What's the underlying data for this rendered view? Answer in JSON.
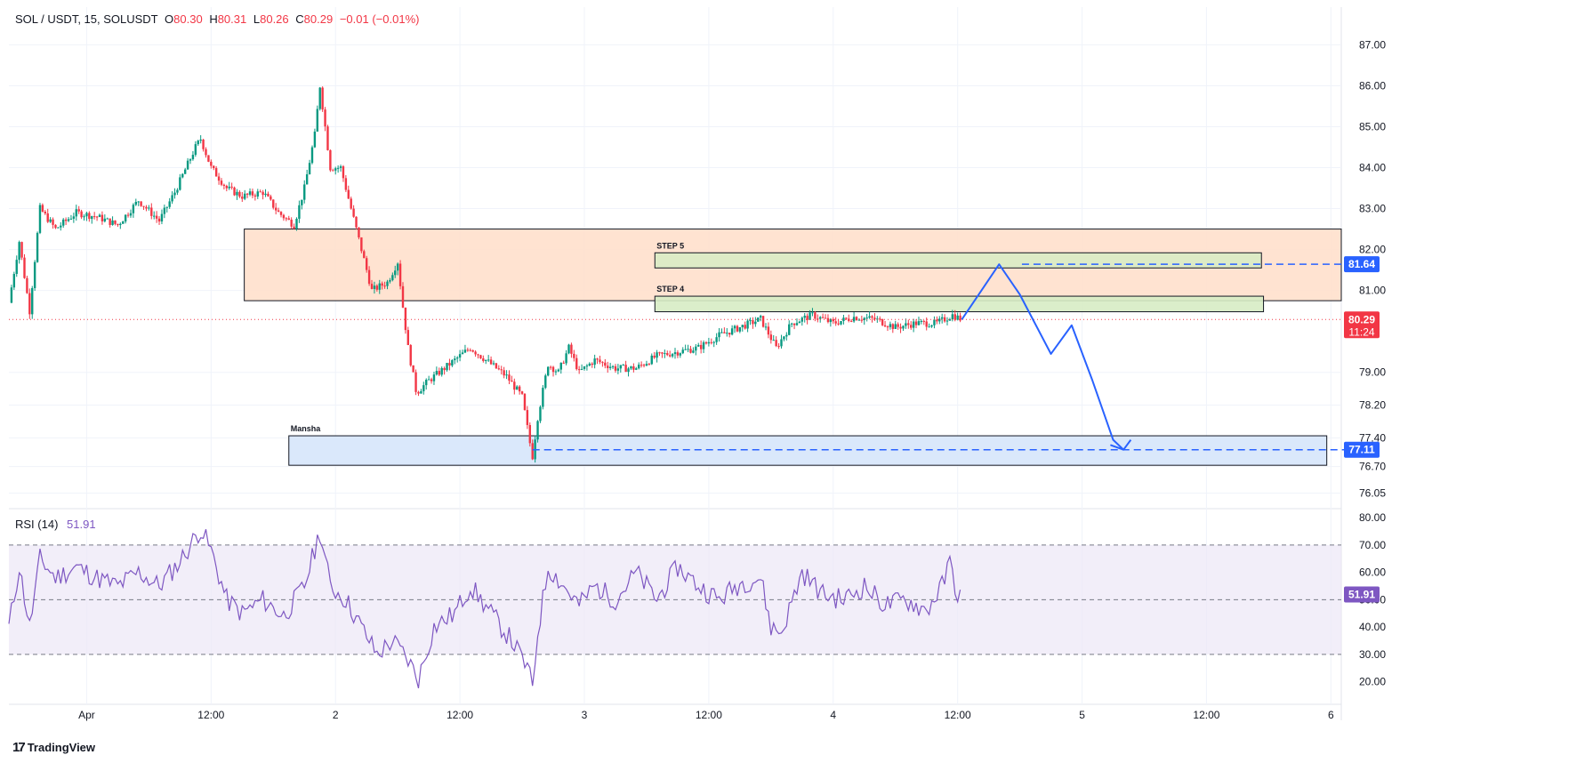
{
  "header": {
    "symbol": "SOL / USDT, 15, SOLUSDT",
    "o_label": "O",
    "o": "80.30",
    "h_label": "H",
    "h": "80.31",
    "l_label": "L",
    "l": "80.26",
    "c_label": "C",
    "c": "80.29",
    "change": "−0.01 (−0.01%)"
  },
  "rsi_header": {
    "label": "RSI (14)",
    "value": "51.91"
  },
  "branding": {
    "logo_icon": "tradingview-icon",
    "name": "TradingView"
  },
  "colors": {
    "up": "#089981",
    "down": "#f23645",
    "rsi_line": "#7e57c2",
    "projection": "#2962ff",
    "supply_zone": "#ffe0cc",
    "step_zone": "#d7ecc4",
    "demand_zone": "#d6e6fb",
    "rsi_band": "#ede7f6"
  },
  "chart_data": [
    {
      "type": "candlestick",
      "title": "SOL / USDT, 15, SOLUSDT",
      "y_axis_side": "right",
      "ylim": [
        75.8,
        87.4
      ],
      "y_ticks": [
        "87.00",
        "86.00",
        "85.00",
        "84.00",
        "83.00",
        "82.00",
        "81.00",
        "79.00",
        "78.20",
        "77.40",
        "76.70",
        "76.05"
      ],
      "x_ticks": [
        "Apr",
        "12:00",
        "2",
        "12:00",
        "3",
        "12:00",
        "4",
        "12:00",
        "5",
        "12:00",
        "6"
      ],
      "x_tick_hours": [
        0,
        12,
        24,
        36,
        48,
        60,
        72,
        84,
        96,
        108,
        120
      ],
      "x_range_hours": [
        -7.5,
        121
      ],
      "last_price": 80.29,
      "last_price_label": "80.29",
      "countdown_label": "11:24",
      "price_path": [
        {
          "t": -7.5,
          "p": 80.7
        },
        {
          "t": -6.5,
          "p": 82.2
        },
        {
          "t": -5.5,
          "p": 80.5
        },
        {
          "t": -4.5,
          "p": 83.0
        },
        {
          "t": -3.0,
          "p": 82.5
        },
        {
          "t": -1.0,
          "p": 82.9
        },
        {
          "t": 1.0,
          "p": 82.8
        },
        {
          "t": 3.0,
          "p": 82.6
        },
        {
          "t": 5.0,
          "p": 83.2
        },
        {
          "t": 7.0,
          "p": 82.7
        },
        {
          "t": 8.5,
          "p": 83.4
        },
        {
          "t": 10.5,
          "p": 84.5
        },
        {
          "t": 11.0,
          "p": 84.7
        },
        {
          "t": 12.0,
          "p": 84.0
        },
        {
          "t": 13.5,
          "p": 83.5
        },
        {
          "t": 15.0,
          "p": 83.3
        },
        {
          "t": 17.0,
          "p": 83.4
        },
        {
          "t": 18.5,
          "p": 82.9
        },
        {
          "t": 20.0,
          "p": 82.6
        },
        {
          "t": 21.0,
          "p": 83.5
        },
        {
          "t": 22.0,
          "p": 84.8
        },
        {
          "t": 22.5,
          "p": 86.0
        },
        {
          "t": 23.0,
          "p": 85.0
        },
        {
          "t": 23.5,
          "p": 84.0
        },
        {
          "t": 24.5,
          "p": 84.0
        },
        {
          "t": 25.5,
          "p": 83.0
        },
        {
          "t": 26.5,
          "p": 82.0
        },
        {
          "t": 27.5,
          "p": 81.0
        },
        {
          "t": 29.0,
          "p": 81.2
        },
        {
          "t": 30.0,
          "p": 81.7
        },
        {
          "t": 30.5,
          "p": 80.6
        },
        {
          "t": 31.0,
          "p": 79.6
        },
        {
          "t": 31.8,
          "p": 78.5
        },
        {
          "t": 33.0,
          "p": 78.8
        },
        {
          "t": 35.0,
          "p": 79.2
        },
        {
          "t": 37.0,
          "p": 79.6
        },
        {
          "t": 39.0,
          "p": 79.2
        },
        {
          "t": 40.5,
          "p": 78.9
        },
        {
          "t": 42.0,
          "p": 78.4
        },
        {
          "t": 42.8,
          "p": 77.2
        },
        {
          "t": 43.0,
          "p": 76.95
        },
        {
          "t": 43.5,
          "p": 77.9
        },
        {
          "t": 44.5,
          "p": 79.2
        },
        {
          "t": 45.5,
          "p": 79.0
        },
        {
          "t": 46.5,
          "p": 79.6
        },
        {
          "t": 47.5,
          "p": 79.0
        },
        {
          "t": 49.0,
          "p": 79.3
        },
        {
          "t": 51.0,
          "p": 79.1
        },
        {
          "t": 53.0,
          "p": 79.1
        },
        {
          "t": 55.0,
          "p": 79.4
        },
        {
          "t": 57.0,
          "p": 79.5
        },
        {
          "t": 59.0,
          "p": 79.6
        },
        {
          "t": 61.0,
          "p": 79.9
        },
        {
          "t": 63.0,
          "p": 80.1
        },
        {
          "t": 65.0,
          "p": 80.3
        },
        {
          "t": 66.5,
          "p": 79.6
        },
        {
          "t": 68.0,
          "p": 80.2
        },
        {
          "t": 70.0,
          "p": 80.4
        },
        {
          "t": 72.0,
          "p": 80.2
        },
        {
          "t": 74.0,
          "p": 80.35
        },
        {
          "t": 76.0,
          "p": 80.3
        },
        {
          "t": 78.0,
          "p": 80.1
        },
        {
          "t": 80.0,
          "p": 80.2
        },
        {
          "t": 82.0,
          "p": 80.2
        },
        {
          "t": 83.5,
          "p": 80.4
        },
        {
          "t": 84.4,
          "p": 80.29
        }
      ],
      "zones": [
        {
          "name": "supply-zone",
          "label": "",
          "t0": 15.2,
          "t1": 121,
          "ymin": 80.75,
          "ymax": 82.5
        },
        {
          "name": "step-5-zone",
          "label": "STEP 5",
          "t0": 54.8,
          "t1": 113.3,
          "ymin": 81.55,
          "ymax": 81.92
        },
        {
          "name": "step-4-zone",
          "label": "STEP 4",
          "t0": 54.8,
          "t1": 113.5,
          "ymin": 80.48,
          "ymax": 80.86
        },
        {
          "name": "mansha-zone",
          "label": "Mansha",
          "t0": 19.5,
          "t1": 119.6,
          "ymin": 76.73,
          "ymax": 77.45
        }
      ],
      "levels": [
        {
          "name": "target-81.64",
          "value": 81.64,
          "label": "81.64",
          "t0": 90.2
        },
        {
          "name": "target-77.11",
          "value": 77.11,
          "label": "77.11",
          "t0": 43.0
        }
      ],
      "projection": [
        {
          "t": 84.4,
          "p": 80.29
        },
        {
          "t": 86.3,
          "p": 81.0
        },
        {
          "t": 88.0,
          "p": 81.64
        },
        {
          "t": 90.0,
          "p": 80.9
        },
        {
          "t": 93.0,
          "p": 79.45
        },
        {
          "t": 95.0,
          "p": 80.15
        },
        {
          "t": 97.0,
          "p": 78.8
        },
        {
          "t": 99.0,
          "p": 77.35
        },
        {
          "t": 100.0,
          "p": 77.11
        },
        {
          "t": 98.8,
          "p": 77.22
        },
        {
          "t": 100.0,
          "p": 77.11
        },
        {
          "t": 100.7,
          "p": 77.35
        }
      ]
    },
    {
      "type": "line",
      "title": "RSI (14)",
      "ylim": [
        15,
        82
      ],
      "y_ticks": [
        "80.00",
        "70.00",
        "60.00",
        "50.00",
        "40.00",
        "30.00",
        "20.00"
      ],
      "band": [
        30,
        70
      ],
      "mid": 50,
      "last_label": "51.91",
      "series": [
        {
          "values": [
            {
              "t": -7.5,
              "p": 40
            },
            {
              "t": -6.5,
              "p": 62
            },
            {
              "t": -5.5,
              "p": 40
            },
            {
              "t": -4.5,
              "p": 65
            },
            {
              "t": -3,
              "p": 58
            },
            {
              "t": -1,
              "p": 62
            },
            {
              "t": 1,
              "p": 58
            },
            {
              "t": 3,
              "p": 55
            },
            {
              "t": 5,
              "p": 60
            },
            {
              "t": 7,
              "p": 55
            },
            {
              "t": 9,
              "p": 64
            },
            {
              "t": 11,
              "p": 76
            },
            {
              "t": 12,
              "p": 68
            },
            {
              "t": 13.5,
              "p": 50
            },
            {
              "t": 15,
              "p": 45
            },
            {
              "t": 17,
              "p": 50
            },
            {
              "t": 19,
              "p": 44
            },
            {
              "t": 21,
              "p": 55
            },
            {
              "t": 22.5,
              "p": 75
            },
            {
              "t": 23.5,
              "p": 55
            },
            {
              "t": 25,
              "p": 50
            },
            {
              "t": 26.5,
              "p": 40
            },
            {
              "t": 28,
              "p": 30
            },
            {
              "t": 29.5,
              "p": 35
            },
            {
              "t": 31,
              "p": 28
            },
            {
              "t": 32,
              "p": 21
            },
            {
              "t": 33.5,
              "p": 40
            },
            {
              "t": 35.5,
              "p": 45
            },
            {
              "t": 37,
              "p": 55
            },
            {
              "t": 39,
              "p": 45
            },
            {
              "t": 41,
              "p": 35
            },
            {
              "t": 42.5,
              "p": 25
            },
            {
              "t": 43,
              "p": 18
            },
            {
              "t": 43.5,
              "p": 38
            },
            {
              "t": 44.5,
              "p": 62
            },
            {
              "t": 46,
              "p": 55
            },
            {
              "t": 47.5,
              "p": 48
            },
            {
              "t": 49,
              "p": 55
            },
            {
              "t": 51,
              "p": 50
            },
            {
              "t": 53,
              "p": 60
            },
            {
              "t": 55,
              "p": 50
            },
            {
              "t": 57,
              "p": 62
            },
            {
              "t": 59,
              "p": 55
            },
            {
              "t": 61,
              "p": 50
            },
            {
              "t": 63,
              "p": 56
            },
            {
              "t": 65,
              "p": 58
            },
            {
              "t": 66,
              "p": 40
            },
            {
              "t": 67,
              "p": 38
            },
            {
              "t": 69,
              "p": 60
            },
            {
              "t": 71,
              "p": 52
            },
            {
              "t": 73,
              "p": 50
            },
            {
              "t": 75,
              "p": 55
            },
            {
              "t": 77,
              "p": 48
            },
            {
              "t": 79,
              "p": 50
            },
            {
              "t": 81,
              "p": 46
            },
            {
              "t": 82.5,
              "p": 55
            },
            {
              "t": 83.3,
              "p": 64
            },
            {
              "t": 84,
              "p": 51
            },
            {
              "t": 84.4,
              "p": 51.91
            }
          ]
        }
      ]
    }
  ]
}
